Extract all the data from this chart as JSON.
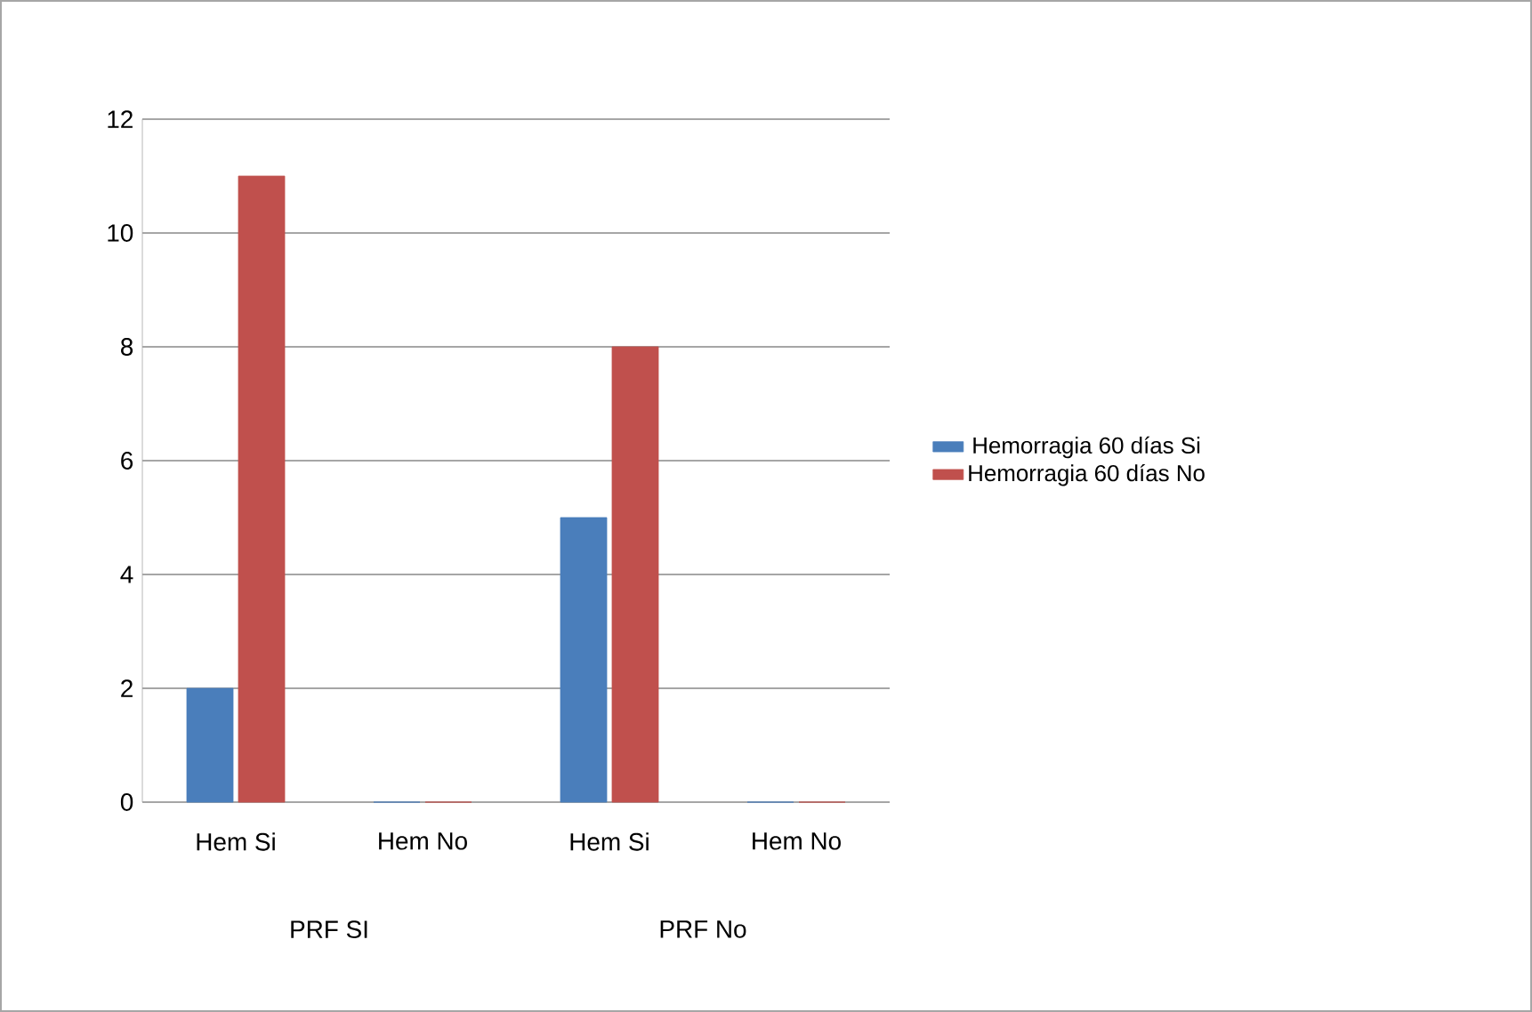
{
  "chart_data": {
    "type": "bar",
    "categories": [
      "Hem Si",
      "Hem No",
      "Hem Si",
      "Hem No"
    ],
    "series": [
      {
        "name": "Hemorragia 60 días Si",
        "color": "#4a7ebb",
        "values": [
          2,
          0,
          5,
          0
        ]
      },
      {
        "name": "Hemorragia 60 días No",
        "color": "#c0504d",
        "values": [
          11,
          0,
          8,
          0
        ]
      }
    ],
    "annotations": [
      "PRF SI",
      "PRF No"
    ],
    "ylim": [
      0,
      12
    ],
    "yticks": [
      0,
      2,
      4,
      6,
      8,
      10,
      12
    ],
    "grid": "y",
    "legend": "right"
  }
}
